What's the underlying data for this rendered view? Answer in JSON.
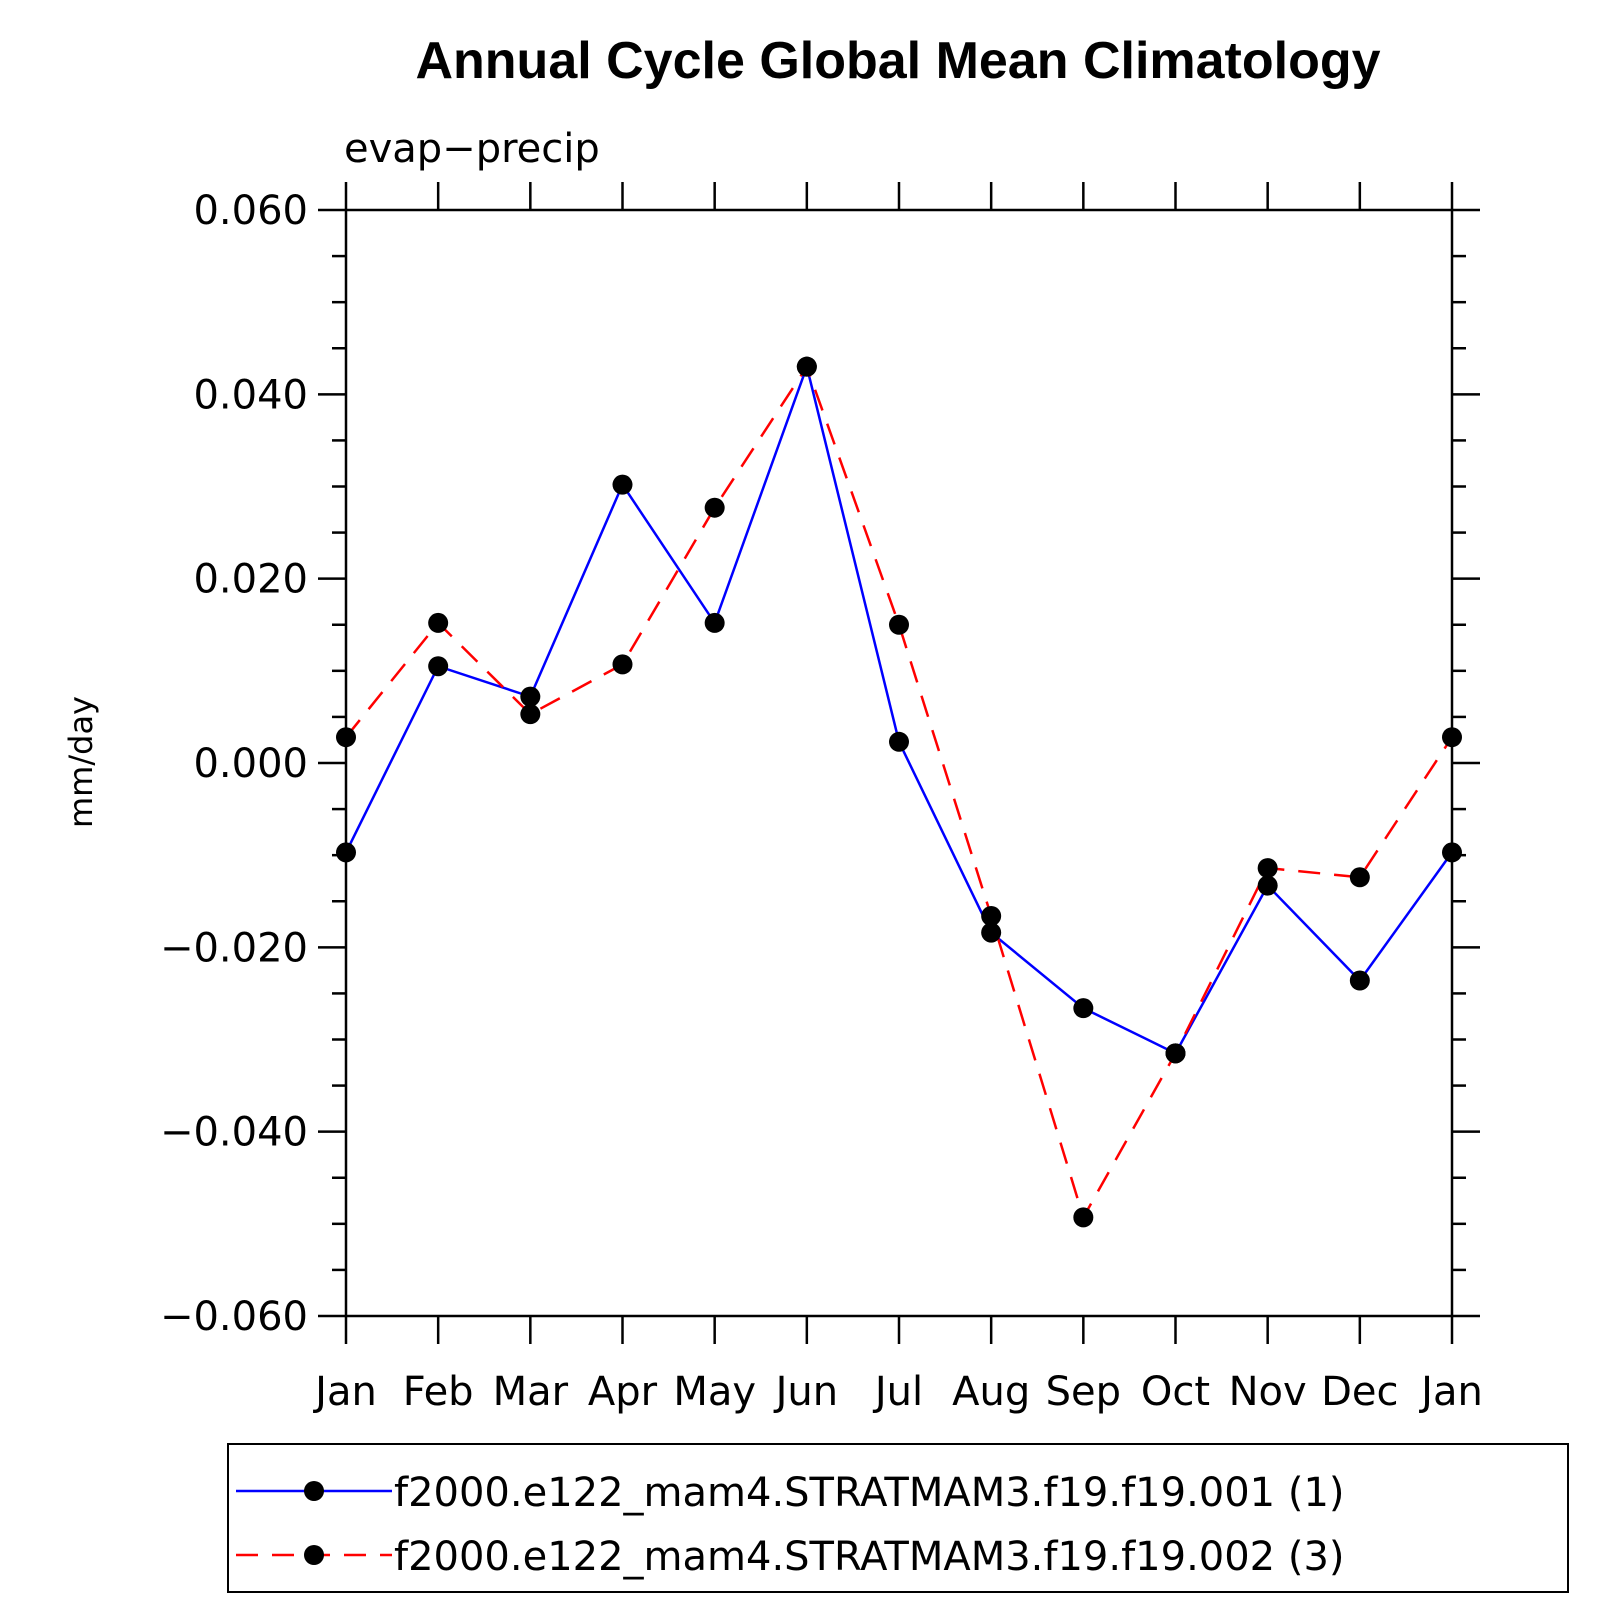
{
  "chart_data": {
    "type": "line",
    "title": "Annual Cycle Global Mean Climatology",
    "subtitle": "evap−precip",
    "xlabel": "",
    "ylabel": "mm/day",
    "categories": [
      "Jan",
      "Feb",
      "Mar",
      "Apr",
      "May",
      "Jun",
      "Jul",
      "Aug",
      "Sep",
      "Oct",
      "Nov",
      "Dec",
      "Jan"
    ],
    "ylim": [
      -0.06,
      0.06
    ],
    "yticks": [
      0.06,
      0.04,
      0.02,
      0.0,
      -0.02,
      -0.04,
      -0.06
    ],
    "ytick_labels": [
      "0.060",
      "0.040",
      "0.020",
      "0.000",
      "−0.020",
      "−0.040",
      "−0.060"
    ],
    "series": [
      {
        "name": "f2000.e122_mam4.STRATMAM3.f19.f19.001 (1)",
        "color": "#0000ff",
        "dash": "solid",
        "marker": "filled-circle",
        "values": [
          -0.0097,
          0.0105,
          0.0072,
          0.0302,
          0.0152,
          0.043,
          0.0023,
          -0.0184,
          -0.0266,
          -0.0315,
          -0.0133,
          -0.0236,
          -0.0097
        ]
      },
      {
        "name": "f2000.e122_mam4.STRATMAM3.f19.f19.002 (3)",
        "color": "#ff0000",
        "dash": "dashed",
        "marker": "filled-circle",
        "values": [
          0.0028,
          0.0152,
          0.0053,
          0.0107,
          0.0277,
          0.043,
          0.015,
          -0.0166,
          -0.0493,
          -0.0315,
          -0.0114,
          -0.0124,
          0.0028
        ]
      }
    ],
    "legend_position": "bottom"
  }
}
